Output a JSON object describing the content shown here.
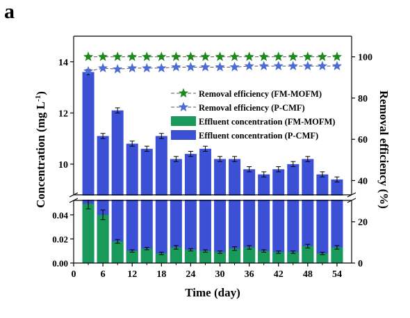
{
  "panel_label": "a",
  "chart_data": {
    "type": "bar",
    "xlabel": "Time (day)",
    "ylabel_left": "Concentration (mg L-1)",
    "ylabel_right": "Removal efficiency (%)",
    "x": [
      3,
      6,
      9,
      12,
      15,
      18,
      21,
      24,
      27,
      30,
      33,
      36,
      39,
      42,
      45,
      48,
      51,
      54
    ],
    "x_ticks": [
      0,
      6,
      12,
      18,
      24,
      30,
      36,
      42,
      48,
      54
    ],
    "xlim": [
      0,
      57
    ],
    "y_left_axis_break": true,
    "y_left_upper_ticks": [
      10,
      12,
      14
    ],
    "y_left_upper_range": [
      8.8,
      15
    ],
    "y_left_lower_ticks": [
      "0.00",
      "0.02",
      "0.04"
    ],
    "y_left_lower_range": [
      0,
      0.052
    ],
    "y_right_ticks": [
      0,
      20,
      40,
      60,
      80,
      100
    ],
    "y_right_range": [
      0,
      110
    ],
    "legend_placement": "center-right",
    "series": [
      {
        "name": "Removal efficiency (FM-MOFM)",
        "kind": "line-star",
        "axis": "right",
        "color": "#1e8a1e",
        "values": [
          100,
          100,
          100,
          100,
          100,
          100,
          100,
          100,
          100,
          100,
          100,
          100,
          100,
          100,
          100,
          100,
          100,
          100
        ]
      },
      {
        "name": "Removal efficiency (P-CMF)",
        "kind": "line-star",
        "axis": "right",
        "color": "#4b6bd6",
        "values": [
          93,
          94.5,
          94,
          94.5,
          94.5,
          94.5,
          95,
          95,
          95,
          95,
          95,
          95.5,
          95.5,
          95.5,
          95.5,
          95.5,
          95.5,
          95.5
        ]
      },
      {
        "name": "Effluent concentration (FM-MOFM)",
        "kind": "bar",
        "axis": "left-lower",
        "color": "#1a9a5a",
        "values": [
          0.049,
          0.04,
          0.018,
          0.01,
          0.012,
          0.008,
          0.013,
          0.011,
          0.01,
          0.009,
          0.012,
          0.013,
          0.01,
          0.009,
          0.009,
          0.014,
          0.008,
          0.013
        ],
        "errors": [
          0.004,
          0.004,
          0.0015,
          0.001,
          0.001,
          0.001,
          0.0015,
          0.001,
          0.001,
          0.001,
          0.0015,
          0.0015,
          0.001,
          0.001,
          0.001,
          0.0015,
          0.001,
          0.0015
        ]
      },
      {
        "name": "Effluent concentration (P-CMF)",
        "kind": "bar",
        "axis": "left-upper",
        "color": "#3b50d4",
        "values": [
          13.6,
          11.1,
          12.1,
          10.8,
          10.6,
          11.1,
          10.2,
          10.4,
          10.6,
          10.2,
          10.2,
          9.8,
          9.6,
          9.8,
          10.0,
          10.2,
          9.6,
          9.4
        ],
        "errors": [
          0.1,
          0.1,
          0.1,
          0.1,
          0.1,
          0.1,
          0.1,
          0.1,
          0.1,
          0.1,
          0.1,
          0.1,
          0.1,
          0.1,
          0.1,
          0.1,
          0.1,
          0.1
        ]
      }
    ],
    "colors": {
      "axis": "#000000",
      "frame": "#000000"
    }
  }
}
